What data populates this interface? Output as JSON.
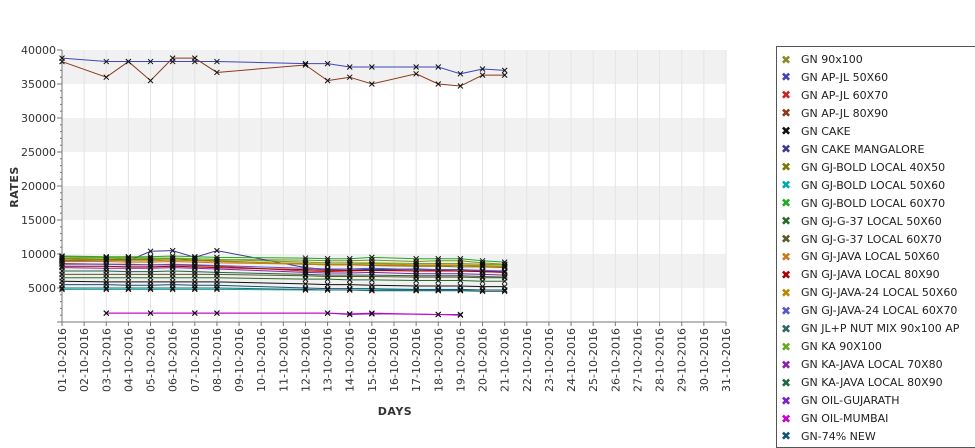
{
  "chart_data": {
    "type": "line",
    "xlabel": "DAYS",
    "ylabel": "RATES",
    "ylim": [
      0,
      40000
    ],
    "yticks": [
      5000,
      10000,
      15000,
      20000,
      25000,
      30000,
      35000,
      40000
    ],
    "x_categories": [
      "01-10-2016",
      "02-10-2016",
      "03-10-2016",
      "04-10-2016",
      "05-10-2016",
      "06-10-2016",
      "07-10-2016",
      "08-10-2016",
      "09-10-2016",
      "10-10-2016",
      "11-10-2016",
      "12-10-2016",
      "13-10-2016",
      "14-10-2016",
      "15-10-2016",
      "16-10-2016",
      "17-10-2016",
      "18-10-2016",
      "19-10-2016",
      "20-10-2016",
      "21-10-2016",
      "22-10-2016",
      "23-10-2016",
      "24-10-2016",
      "25-10-2016",
      "26-10-2016",
      "27-10-2016",
      "28-10-2016",
      "29-10-2016",
      "30-10-2016",
      "31-10-2016"
    ],
    "grid": "alternating horizontal bands",
    "legend_position": "right",
    "series": [
      {
        "name": "GN 90x100",
        "color": "#8a8a2a",
        "x": [
          "01-10-2016",
          "03-10-2016",
          "04-10-2016",
          "05-10-2016",
          "06-10-2016",
          "07-10-2016",
          "08-10-2016",
          "12-10-2016",
          "13-10-2016",
          "14-10-2016",
          "15-10-2016",
          "17-10-2016",
          "18-10-2016",
          "19-10-2016",
          "20-10-2016",
          "21-10-2016"
        ],
        "values": [
          9600,
          9500,
          9500,
          9400,
          9400,
          9300,
          9200,
          9100,
          9000,
          9000,
          9100,
          8900,
          9000,
          9000,
          8700,
          8500
        ]
      },
      {
        "name": "GN AP-JL 50X60",
        "color": "#4444bb",
        "x": [
          "01-10-2016",
          "03-10-2016",
          "04-10-2016",
          "05-10-2016",
          "06-10-2016",
          "07-10-2016",
          "08-10-2016",
          "12-10-2016",
          "13-10-2016",
          "14-10-2016",
          "15-10-2016",
          "17-10-2016",
          "18-10-2016",
          "19-10-2016",
          "20-10-2016",
          "21-10-2016"
        ],
        "values": [
          38800,
          38300,
          38300,
          38300,
          38300,
          38300,
          38300,
          38000,
          38000,
          37500,
          37500,
          37500,
          37500,
          36500,
          37200,
          37000
        ]
      },
      {
        "name": "GN AP-JL 60X70",
        "color": "#cc2222",
        "x": [
          "01-10-2016",
          "03-10-2016",
          "04-10-2016",
          "05-10-2016",
          "06-10-2016",
          "07-10-2016",
          "08-10-2016",
          "12-10-2016",
          "13-10-2016",
          "14-10-2016",
          "15-10-2016",
          "17-10-2016",
          "18-10-2016",
          "19-10-2016",
          "20-10-2016",
          "21-10-2016"
        ],
        "values": [
          8600,
          8500,
          8500,
          8400,
          8400,
          8300,
          8200,
          7500,
          7400,
          7500,
          7600,
          7700,
          7600,
          7500,
          7400,
          7300
        ]
      },
      {
        "name": "GN AP-JL 80X90",
        "color": "#8b3a1a",
        "x": [
          "01-10-2016",
          "03-10-2016",
          "04-10-2016",
          "05-10-2016",
          "06-10-2016",
          "07-10-2016",
          "08-10-2016",
          "12-10-2016",
          "13-10-2016",
          "14-10-2016",
          "15-10-2016",
          "17-10-2016",
          "18-10-2016",
          "19-10-2016",
          "20-10-2016",
          "21-10-2016"
        ],
        "values": [
          38300,
          36000,
          38300,
          35500,
          38800,
          38800,
          36700,
          37800,
          35500,
          36000,
          35000,
          36500,
          35000,
          34700,
          36300,
          36300
        ]
      },
      {
        "name": "GN CAKE",
        "color": "#111111",
        "x": [
          "01-10-2016",
          "03-10-2016",
          "04-10-2016",
          "05-10-2016",
          "06-10-2016",
          "07-10-2016",
          "08-10-2016",
          "12-10-2016",
          "13-10-2016",
          "14-10-2016",
          "15-10-2016",
          "17-10-2016",
          "18-10-2016",
          "19-10-2016",
          "20-10-2016",
          "21-10-2016"
        ],
        "values": [
          6000,
          5900,
          5900,
          5900,
          5900,
          5900,
          5900,
          5600,
          5500,
          5500,
          5400,
          5300,
          5300,
          5300,
          5200,
          5200
        ]
      },
      {
        "name": "GN CAKE MANGALORE",
        "color": "#3a3a99",
        "x": [
          "01-10-2016",
          "03-10-2016",
          "04-10-2016",
          "05-10-2016",
          "06-10-2016",
          "07-10-2016",
          "08-10-2016",
          "12-10-2016",
          "13-10-2016",
          "14-10-2016",
          "15-10-2016",
          "17-10-2016",
          "18-10-2016",
          "19-10-2016",
          "20-10-2016",
          "21-10-2016"
        ],
        "values": [
          9000,
          9100,
          9000,
          10400,
          10500,
          9500,
          10500,
          8000,
          7700,
          7800,
          7700,
          7800,
          7700,
          7700,
          7500,
          7400
        ]
      },
      {
        "name": "GN GJ-BOLD LOCAL 40X50",
        "color": "#7a7a00",
        "x": [
          "01-10-2016",
          "03-10-2016",
          "04-10-2016",
          "05-10-2016",
          "06-10-2016",
          "07-10-2016",
          "08-10-2016",
          "12-10-2016",
          "13-10-2016",
          "14-10-2016",
          "15-10-2016",
          "17-10-2016",
          "18-10-2016",
          "19-10-2016",
          "20-10-2016",
          "21-10-2016"
        ],
        "values": [
          9300,
          9200,
          9200,
          9200,
          9300,
          9100,
          9000,
          8500,
          8400,
          8400,
          8300,
          8200,
          8200,
          8100,
          8100,
          8000
        ]
      },
      {
        "name": "GN GJ-BOLD LOCAL 50X60",
        "color": "#00aaaa",
        "x": [
          "01-10-2016",
          "03-10-2016",
          "04-10-2016",
          "05-10-2016",
          "06-10-2016",
          "07-10-2016",
          "08-10-2016",
          "12-10-2016",
          "13-10-2016",
          "14-10-2016",
          "15-10-2016",
          "17-10-2016",
          "18-10-2016",
          "19-10-2016",
          "20-10-2016",
          "21-10-2016"
        ],
        "values": [
          4800,
          4800,
          4800,
          4800,
          4800,
          4800,
          4800,
          4700,
          4700,
          4700,
          4700,
          4700,
          4700,
          4700,
          4700,
          4700
        ]
      },
      {
        "name": "GN GJ-BOLD LOCAL 60X70",
        "color": "#22aa22",
        "x": [
          "01-10-2016",
          "03-10-2016",
          "04-10-2016",
          "05-10-2016",
          "06-10-2016",
          "07-10-2016",
          "08-10-2016",
          "12-10-2016",
          "13-10-2016",
          "14-10-2016",
          "15-10-2016",
          "17-10-2016",
          "18-10-2016",
          "19-10-2016",
          "20-10-2016",
          "21-10-2016"
        ],
        "values": [
          9700,
          9600,
          9600,
          9600,
          9700,
          9600,
          9500,
          9400,
          9300,
          9300,
          9500,
          9300,
          9300,
          9300,
          9000,
          8800
        ]
      },
      {
        "name": "GN GJ-G-37 LOCAL 50X60",
        "color": "#2a6a2a",
        "x": [
          "01-10-2016",
          "03-10-2016",
          "04-10-2016",
          "05-10-2016",
          "06-10-2016",
          "07-10-2016",
          "08-10-2016",
          "12-10-2016",
          "13-10-2016",
          "14-10-2016",
          "15-10-2016",
          "17-10-2016",
          "18-10-2016",
          "19-10-2016",
          "20-10-2016",
          "21-10-2016"
        ],
        "values": [
          6500,
          6500,
          6500,
          6500,
          6500,
          6500,
          6500,
          6300,
          6300,
          6200,
          6200,
          6100,
          6100,
          6100,
          6000,
          6000
        ]
      },
      {
        "name": "GN GJ-G-37 LOCAL 60X70",
        "color": "#5a5a2a",
        "x": [
          "01-10-2016",
          "03-10-2016",
          "04-10-2016",
          "05-10-2016",
          "06-10-2016",
          "07-10-2016",
          "08-10-2016",
          "12-10-2016",
          "13-10-2016",
          "14-10-2016",
          "15-10-2016",
          "17-10-2016",
          "18-10-2016",
          "19-10-2016",
          "20-10-2016",
          "21-10-2016"
        ],
        "values": [
          7000,
          7000,
          7000,
          7000,
          7000,
          7000,
          7000,
          6800,
          6700,
          6700,
          6700,
          6600,
          6600,
          6600,
          6500,
          6500
        ]
      },
      {
        "name": "GN GJ-JAVA LOCAL 50X60",
        "color": "#cc7a22",
        "x": [
          "01-10-2016",
          "03-10-2016",
          "04-10-2016",
          "05-10-2016",
          "06-10-2016",
          "07-10-2016",
          "08-10-2016",
          "12-10-2016",
          "13-10-2016",
          "14-10-2016",
          "15-10-2016",
          "17-10-2016",
          "18-10-2016",
          "19-10-2016",
          "20-10-2016",
          "21-10-2016"
        ],
        "values": [
          8900,
          8900,
          8800,
          8800,
          8900,
          8800,
          8700,
          8500,
          8400,
          8400,
          8400,
          8300,
          8300,
          8300,
          8200,
          8100
        ]
      },
      {
        "name": "GN GJ-JAVA LOCAL 80X90",
        "color": "#aa0000",
        "x": [
          "01-10-2016",
          "03-10-2016",
          "04-10-2016",
          "05-10-2016",
          "06-10-2016",
          "07-10-2016",
          "08-10-2016",
          "12-10-2016",
          "13-10-2016",
          "14-10-2016",
          "15-10-2016",
          "17-10-2016",
          "18-10-2016",
          "19-10-2016",
          "20-10-2016",
          "21-10-2016"
        ],
        "values": [
          8200,
          8200,
          8100,
          8100,
          8200,
          8100,
          8000,
          7700,
          7600,
          7600,
          7600,
          7500,
          7500,
          7500,
          7400,
          7300
        ]
      },
      {
        "name": "GN GJ-JAVA-24 LOCAL 50X60",
        "color": "#bb8800",
        "x": [
          "01-10-2016",
          "03-10-2016",
          "04-10-2016",
          "05-10-2016",
          "06-10-2016",
          "07-10-2016",
          "08-10-2016",
          "12-10-2016",
          "13-10-2016",
          "14-10-2016",
          "15-10-2016",
          "17-10-2016",
          "18-10-2016",
          "19-10-2016",
          "20-10-2016",
          "21-10-2016"
        ],
        "values": [
          9100,
          9100,
          9000,
          9000,
          9100,
          9000,
          8900,
          8600,
          8500,
          8500,
          8600,
          8400,
          8400,
          8400,
          8300,
          8200
        ]
      },
      {
        "name": "GN GJ-JAVA-24 LOCAL 60X70",
        "color": "#5555cc",
        "x": [
          "01-10-2016",
          "03-10-2016",
          "04-10-2016",
          "05-10-2016",
          "06-10-2016",
          "07-10-2016",
          "08-10-2016",
          "12-10-2016",
          "13-10-2016",
          "14-10-2016",
          "15-10-2016",
          "17-10-2016",
          "18-10-2016",
          "19-10-2016",
          "20-10-2016",
          "21-10-2016"
        ],
        "values": [
          8500,
          8500,
          8400,
          8400,
          8500,
          8400,
          8300,
          7900,
          7800,
          7800,
          7900,
          7700,
          7700,
          7700,
          7600,
          7500
        ]
      },
      {
        "name": "GN JL+P NUT MIX 90x100 AP",
        "color": "#336666",
        "x": [
          "01-10-2016",
          "03-10-2016",
          "04-10-2016",
          "05-10-2016",
          "06-10-2016",
          "07-10-2016",
          "08-10-2016",
          "12-10-2016",
          "13-10-2016",
          "14-10-2016",
          "15-10-2016",
          "17-10-2016",
          "18-10-2016",
          "19-10-2016",
          "20-10-2016",
          "21-10-2016"
        ],
        "values": [
          5000,
          5000,
          5000,
          5000,
          5000,
          5000,
          5000,
          4800,
          4700,
          4700,
          4600,
          4600,
          4600,
          4600,
          4500,
          4500
        ]
      },
      {
        "name": "GN KA 90X100",
        "color": "#66aa22",
        "x": [
          "01-10-2016",
          "03-10-2016",
          "04-10-2016",
          "05-10-2016",
          "06-10-2016",
          "07-10-2016",
          "08-10-2016",
          "12-10-2016",
          "13-10-2016",
          "14-10-2016",
          "15-10-2016",
          "17-10-2016",
          "18-10-2016",
          "19-10-2016",
          "20-10-2016",
          "21-10-2016"
        ],
        "values": [
          9400,
          9400,
          9300,
          9300,
          9400,
          9300,
          9200,
          8800,
          8700,
          8700,
          8700,
          8600,
          8600,
          8600,
          8500,
          8400
        ]
      },
      {
        "name": "GN KA-JAVA LOCAL 70X80",
        "color": "#8822aa",
        "x": [
          "01-10-2016",
          "03-10-2016",
          "04-10-2016",
          "05-10-2016",
          "06-10-2016",
          "07-10-2016",
          "08-10-2016",
          "12-10-2016",
          "13-10-2016",
          "14-10-2016",
          "15-10-2016",
          "17-10-2016",
          "18-10-2016",
          "19-10-2016",
          "20-10-2016",
          "21-10-2016"
        ],
        "values": [
          8000,
          7900,
          7900,
          7900,
          8000,
          7900,
          7800,
          7300,
          7200,
          7200,
          7300,
          7100,
          7100,
          7100,
          7000,
          6900
        ]
      },
      {
        "name": "GN KA-JAVA LOCAL 80X90",
        "color": "#226644",
        "x": [
          "01-10-2016",
          "03-10-2016",
          "04-10-2016",
          "05-10-2016",
          "06-10-2016",
          "07-10-2016",
          "08-10-2016",
          "12-10-2016",
          "13-10-2016",
          "14-10-2016",
          "15-10-2016",
          "17-10-2016",
          "18-10-2016",
          "19-10-2016",
          "20-10-2016",
          "21-10-2016"
        ],
        "values": [
          7500,
          7500,
          7400,
          7400,
          7500,
          7400,
          7300,
          7000,
          6900,
          6900,
          6900,
          6800,
          6800,
          6800,
          6700,
          6600
        ]
      },
      {
        "name": "GN OIL-GUJARATH",
        "color": "#7722cc",
        "x": [
          "03-10-2016",
          "05-10-2016",
          "07-10-2016",
          "08-10-2016",
          "13-10-2016",
          "14-10-2016",
          "15-10-2016",
          "18-10-2016",
          "19-10-2016"
        ],
        "values": [
          1300,
          1300,
          1300,
          1300,
          1300,
          1100,
          1200,
          1100,
          1000
        ]
      },
      {
        "name": "GN OIL-MUMBAI",
        "color": "#cc00cc",
        "x": [
          "03-10-2016",
          "05-10-2016",
          "07-10-2016",
          "08-10-2016",
          "13-10-2016",
          "14-10-2016",
          "15-10-2016",
          "18-10-2016",
          "19-10-2016"
        ],
        "values": [
          1300,
          1300,
          1300,
          1300,
          1300,
          1200,
          1300,
          1100,
          1100
        ]
      },
      {
        "name": "GN-74% NEW",
        "color": "#115577",
        "x": [
          "01-10-2016",
          "03-10-2016",
          "04-10-2016",
          "05-10-2016",
          "06-10-2016",
          "07-10-2016",
          "08-10-2016",
          "12-10-2016",
          "13-10-2016",
          "14-10-2016",
          "15-10-2016",
          "17-10-2016",
          "18-10-2016",
          "19-10-2016",
          "20-10-2016",
          "21-10-2016"
        ],
        "values": [
          5500,
          5500,
          5400,
          5400,
          5500,
          5400,
          5400,
          5000,
          4900,
          4900,
          4900,
          4800,
          4800,
          4800,
          4700,
          4700
        ]
      }
    ]
  }
}
